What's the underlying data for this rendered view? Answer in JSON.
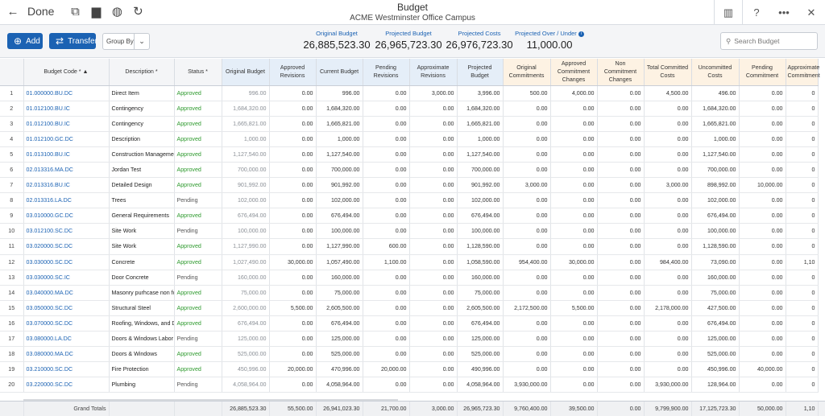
{
  "header": {
    "done_label": "Done",
    "title": "Budget",
    "subtitle": "ACME Westminster Office Campus"
  },
  "toolbar": {
    "add_label": "Add",
    "transfer_label": "Transfer",
    "group_by_label": "Group By",
    "search_placeholder": "Search Budget"
  },
  "stats": [
    {
      "label": "Original Budget",
      "value": "26,885,523.30"
    },
    {
      "label": "Projected Budget",
      "value": "26,965,723.30"
    },
    {
      "label": "Projected Costs",
      "value": "26,976,723.30"
    },
    {
      "label": "Projected Over / Under",
      "value": "11,000.00"
    }
  ],
  "columns": [
    "Budget Code *",
    "Description *",
    "Status *",
    "Original Budget",
    "Approved Revisions",
    "Current Budget",
    "Pending Revisions",
    "Approximate Revisions",
    "Projected Budget",
    "Original Commitments",
    "Approved Commitment Changes",
    "Non Commitment Changes",
    "Total Committed Costs",
    "Uncommitted Costs",
    "Pending Commitment",
    "Approximate Commitment"
  ],
  "rows": [
    [
      "1",
      "01.000000.BU.DC",
      "Direct Item",
      "Approved",
      "996.00",
      "0.00",
      "996.00",
      "0.00",
      "3,000.00",
      "3,996.00",
      "500.00",
      "4,000.00",
      "0.00",
      "4,500.00",
      "496.00",
      "0.00",
      "0"
    ],
    [
      "2",
      "01.012100.BU.IC",
      "Contingency",
      "Approved",
      "1,684,320.00",
      "0.00",
      "1,684,320.00",
      "0.00",
      "0.00",
      "1,684,320.00",
      "0.00",
      "0.00",
      "0.00",
      "0.00",
      "1,684,320.00",
      "0.00",
      "0"
    ],
    [
      "3",
      "01.012100.BU.IC",
      "Contingency",
      "Approved",
      "1,665,821.00",
      "0.00",
      "1,665,821.00",
      "0.00",
      "0.00",
      "1,665,821.00",
      "0.00",
      "0.00",
      "0.00",
      "0.00",
      "1,665,821.00",
      "0.00",
      "0"
    ],
    [
      "4",
      "01.012100.GC.DC",
      "Description",
      "Approved",
      "1,000.00",
      "0.00",
      "1,000.00",
      "0.00",
      "0.00",
      "1,000.00",
      "0.00",
      "0.00",
      "0.00",
      "0.00",
      "1,000.00",
      "0.00",
      "0"
    ],
    [
      "5",
      "01.013100.BU.IC",
      "Construction Managemen",
      "Approved",
      "1,127,540.00",
      "0.00",
      "1,127,540.00",
      "0.00",
      "0.00",
      "1,127,540.00",
      "0.00",
      "0.00",
      "0.00",
      "0.00",
      "1,127,540.00",
      "0.00",
      "0"
    ],
    [
      "6",
      "02.013316.MA.DC",
      "Jordan Test",
      "Approved",
      "700,000.00",
      "0.00",
      "700,000.00",
      "0.00",
      "0.00",
      "700,000.00",
      "0.00",
      "0.00",
      "0.00",
      "0.00",
      "700,000.00",
      "0.00",
      "0"
    ],
    [
      "7",
      "02.013316.BU.IC",
      "Detailed Design",
      "Approved",
      "901,992.00",
      "0.00",
      "901,992.00",
      "0.00",
      "0.00",
      "901,992.00",
      "3,000.00",
      "0.00",
      "0.00",
      "3,000.00",
      "898,992.00",
      "10,000.00",
      "0"
    ],
    [
      "8",
      "02.013316.LA.DC",
      "Trees",
      "Pending",
      "102,000.00",
      "0.00",
      "102,000.00",
      "0.00",
      "0.00",
      "102,000.00",
      "0.00",
      "0.00",
      "0.00",
      "0.00",
      "102,000.00",
      "0.00",
      "0"
    ],
    [
      "9",
      "03.010000.GC.DC",
      "General Requirements",
      "Approved",
      "676,494.00",
      "0.00",
      "676,494.00",
      "0.00",
      "0.00",
      "676,494.00",
      "0.00",
      "0.00",
      "0.00",
      "0.00",
      "676,494.00",
      "0.00",
      "0"
    ],
    [
      "10",
      "03.012100.SC.DC",
      "Site Work",
      "Pending",
      "100,000.00",
      "0.00",
      "100,000.00",
      "0.00",
      "0.00",
      "100,000.00",
      "0.00",
      "0.00",
      "0.00",
      "0.00",
      "100,000.00",
      "0.00",
      "0"
    ],
    [
      "11",
      "03.020000.SC.DC",
      "Site Work",
      "Approved",
      "1,127,990.00",
      "0.00",
      "1,127,990.00",
      "600.00",
      "0.00",
      "1,128,590.00",
      "0.00",
      "0.00",
      "0.00",
      "0.00",
      "1,128,590.00",
      "0.00",
      "0"
    ],
    [
      "12",
      "03.030000.SC.DC",
      "Concrete",
      "Approved",
      "1,027,490.00",
      "30,000.00",
      "1,057,490.00",
      "1,100.00",
      "0.00",
      "1,058,590.00",
      "954,400.00",
      "30,000.00",
      "0.00",
      "984,400.00",
      "73,090.00",
      "0.00",
      "1,10"
    ],
    [
      "13",
      "03.030000.SC.IC",
      "Door Concrete",
      "Pending",
      "160,000.00",
      "0.00",
      "160,000.00",
      "0.00",
      "0.00",
      "160,000.00",
      "0.00",
      "0.00",
      "0.00",
      "0.00",
      "160,000.00",
      "0.00",
      "0"
    ],
    [
      "14",
      "03.040000.MA.DC",
      "Masonry purhcase non for",
      "Approved",
      "75,000.00",
      "0.00",
      "75,000.00",
      "0.00",
      "0.00",
      "75,000.00",
      "0.00",
      "0.00",
      "0.00",
      "0.00",
      "75,000.00",
      "0.00",
      "0"
    ],
    [
      "15",
      "03.050000.SC.DC",
      "Structural Steel",
      "Approved",
      "2,600,000.00",
      "5,500.00",
      "2,605,500.00",
      "0.00",
      "0.00",
      "2,605,500.00",
      "2,172,500.00",
      "5,500.00",
      "0.00",
      "2,178,000.00",
      "427,500.00",
      "0.00",
      "0"
    ],
    [
      "16",
      "03.070000.SC.DC",
      "Roofing, Windows, and Do",
      "Approved",
      "676,494.00",
      "0.00",
      "676,494.00",
      "0.00",
      "0.00",
      "676,494.00",
      "0.00",
      "0.00",
      "0.00",
      "0.00",
      "676,494.00",
      "0.00",
      "0"
    ],
    [
      "17",
      "03.080000.LA.DC",
      "Doors & Windows Labor",
      "Pending",
      "125,000.00",
      "0.00",
      "125,000.00",
      "0.00",
      "0.00",
      "125,000.00",
      "0.00",
      "0.00",
      "0.00",
      "0.00",
      "125,000.00",
      "0.00",
      "0"
    ],
    [
      "18",
      "03.080000.MA.DC",
      "Doors & Windows",
      "Approved",
      "525,000.00",
      "0.00",
      "525,000.00",
      "0.00",
      "0.00",
      "525,000.00",
      "0.00",
      "0.00",
      "0.00",
      "0.00",
      "525,000.00",
      "0.00",
      "0"
    ],
    [
      "19",
      "03.210000.SC.DC",
      "Fire Protection",
      "Approved",
      "450,996.00",
      "20,000.00",
      "470,996.00",
      "20,000.00",
      "0.00",
      "490,996.00",
      "0.00",
      "0.00",
      "0.00",
      "0.00",
      "450,996.00",
      "40,000.00",
      "0"
    ],
    [
      "20",
      "03.220000.SC.DC",
      "Plumbing",
      "Pending",
      "4,058,964.00",
      "0.00",
      "4,058,964.00",
      "0.00",
      "0.00",
      "4,058,964.00",
      "3,930,000.00",
      "0.00",
      "0.00",
      "3,930,000.00",
      "128,964.00",
      "0.00",
      "0"
    ]
  ],
  "totals": {
    "label": "Grand Totals",
    "values": [
      "26,885,523.30",
      "55,500.00",
      "26,941,023.30",
      "21,700.00",
      "3,000.00",
      "26,965,723.30",
      "9,760,400.00",
      "39,500.00",
      "0.00",
      "9,799,900.00",
      "17,125,723.30",
      "50,000.00",
      "1,10"
    ]
  }
}
